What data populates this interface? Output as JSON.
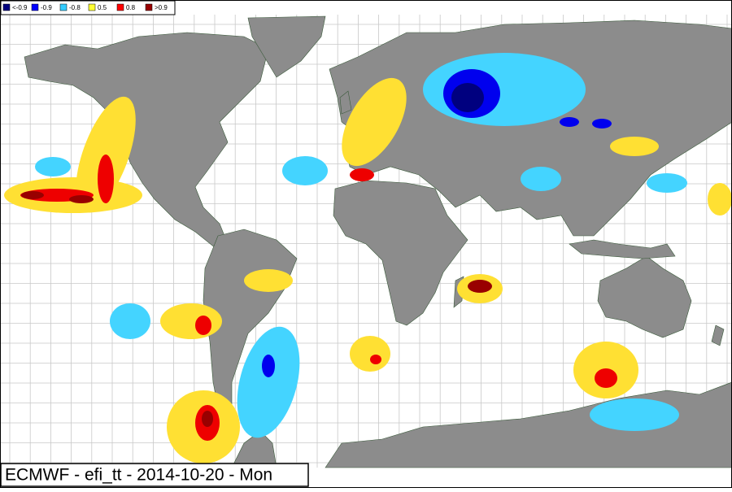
{
  "legend": [
    {
      "label": "<-0.9",
      "color": "#00007f"
    },
    {
      "label": "-0.9",
      "color": "#0000ff"
    },
    {
      "label": "-0.8",
      "color": "#33ccff"
    },
    {
      "label": "0.5",
      "color": "#ffff33"
    },
    {
      "label": "0.8",
      "color": "#ff0000"
    },
    {
      "label": ">0.9",
      "color": "#990000"
    }
  ],
  "footer": {
    "title": "ECMWF - efi_tt - 2014-10-20 - Mon"
  }
}
